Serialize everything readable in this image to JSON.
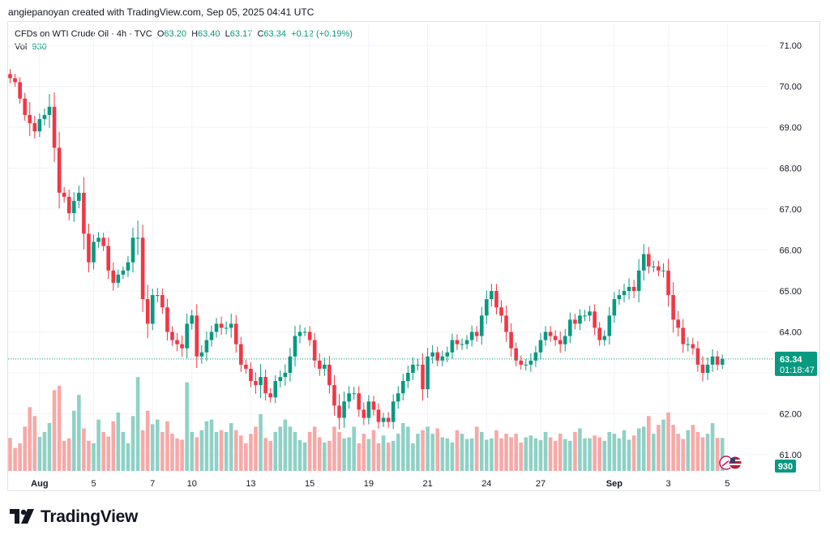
{
  "header": {
    "attribution": "angiepanoyan created with TradingView.com, Sep 05, 2025 04:41 UTC"
  },
  "legend": {
    "symbol": "CFDs on WTI Crude Oil · 4h · TVC",
    "o_label": "O",
    "o_value": "63.20",
    "h_label": "H",
    "h_value": "63.40",
    "l_label": "L",
    "l_value": "63.17",
    "c_label": "C",
    "c_value": "63.34",
    "change": "+0.12 (+0.19%)",
    "vol_label": "Vol",
    "vol_value": "930"
  },
  "branding": {
    "name": "TradingView"
  },
  "colors": {
    "up": "#089981",
    "down": "#f23645",
    "up_volume": "#8fd1c6",
    "down_volume": "#f7a9a7",
    "grid": "#f0f3fa",
    "last_price_line": "#089981"
  },
  "chart_data": {
    "type": "candlestick",
    "title": "CFDs on WTI Crude Oil · 4h · TVC",
    "ylim": [
      60.5,
      71.5
    ],
    "y_ticks": [
      "71.00",
      "70.00",
      "69.00",
      "68.00",
      "67.00",
      "66.00",
      "65.00",
      "64.00",
      "63.00",
      "62.00",
      "61.00"
    ],
    "x_tick_labels": [
      {
        "label": "Aug",
        "index": 6
      },
      {
        "label": "5",
        "index": 17
      },
      {
        "label": "7",
        "index": 29
      },
      {
        "label": "10",
        "index": 37
      },
      {
        "label": "13",
        "index": 49
      },
      {
        "label": "15",
        "index": 61
      },
      {
        "label": "19",
        "index": 73
      },
      {
        "label": "21",
        "index": 85
      },
      {
        "label": "24",
        "index": 97
      },
      {
        "label": "27",
        "index": 108
      },
      {
        "label": "Sep",
        "index": 123
      },
      {
        "label": "3",
        "index": 134
      },
      {
        "label": "5",
        "index": 146
      }
    ],
    "last_price": "63.34",
    "countdown": "01:18:47",
    "last_volume": "930",
    "closes": [
      70.2,
      70.1,
      69.7,
      69.3,
      69.1,
      68.9,
      69.2,
      69.3,
      69.5,
      68.5,
      67.4,
      67.3,
      66.9,
      67.2,
      67.4,
      66.4,
      65.7,
      66.2,
      66.3,
      66.1,
      65.5,
      65.2,
      65.4,
      65.5,
      65.7,
      66.3,
      66.3,
      64.8,
      64.2,
      64.9,
      64.9,
      64.6,
      64.0,
      63.8,
      63.7,
      63.6,
      64.2,
      64.4,
      63.4,
      63.5,
      63.8,
      64.0,
      64.2,
      64.1,
      64.1,
      64.2,
      63.7,
      63.2,
      63.1,
      62.8,
      62.7,
      62.9,
      62.5,
      62.4,
      62.8,
      62.9,
      63.0,
      63.4,
      63.9,
      64.0,
      64.0,
      63.8,
      63.3,
      63.1,
      63.2,
      62.7,
      62.2,
      61.9,
      62.3,
      62.5,
      62.5,
      62.1,
      61.9,
      62.3,
      62.1,
      61.8,
      61.9,
      61.8,
      62.3,
      62.5,
      62.8,
      63.0,
      63.2,
      63.2,
      62.6,
      63.4,
      63.5,
      63.3,
      63.4,
      63.5,
      63.8,
      63.7,
      63.7,
      63.8,
      64.0,
      63.9,
      64.4,
      64.8,
      65.0,
      64.6,
      64.4,
      64.0,
      63.6,
      63.3,
      63.2,
      63.2,
      63.3,
      63.5,
      63.8,
      64.0,
      63.9,
      63.8,
      63.7,
      63.9,
      64.3,
      64.2,
      64.4,
      64.4,
      64.5,
      64.1,
      63.8,
      63.9,
      64.4,
      64.8,
      64.9,
      65.0,
      65.1,
      65.0,
      65.5,
      65.9,
      65.6,
      65.6,
      65.5,
      65.5,
      64.9,
      64.3,
      64.1,
      63.7,
      63.7,
      63.6,
      63.2,
      63.0,
      63.2,
      63.4,
      63.2,
      63.34
    ],
    "volumes": [
      930,
      650,
      780,
      1250,
      1800,
      1550,
      960,
      1100,
      1350,
      2280,
      2400,
      850,
      920,
      1700,
      2150,
      1200,
      850,
      780,
      1450,
      1100,
      970,
      1400,
      1650,
      1100,
      780,
      1550,
      2650,
      1150,
      1700,
      1320,
      1450,
      1100,
      1400,
      1050,
      920,
      880,
      2500,
      1100,
      950,
      1150,
      1400,
      1450,
      1100,
      1150,
      1100,
      1350,
      1150,
      1000,
      780,
      1050,
      1250,
      1600,
      930,
      850,
      1100,
      1250,
      1450,
      1250,
      1100,
      870,
      800,
      1100,
      1250,
      950,
      800,
      850,
      1250,
      1100,
      920,
      950,
      1250,
      780,
      1050,
      900,
      1150,
      780,
      1000,
      800,
      850,
      1050,
      1350,
      1250,
      780,
      1050,
      1150,
      1250,
      1050,
      1200,
      950,
      920,
      800,
      1150,
      1050,
      900,
      920,
      1250,
      1100,
      880,
      920,
      1150,
      920,
      1050,
      950,
      1050,
      800,
      950,
      1000,
      920,
      870,
      1100,
      950,
      850,
      1050,
      900,
      850,
      1100,
      1200,
      920,
      920,
      1000,
      950,
      850,
      1100,
      1050,
      920,
      1150,
      880,
      1000,
      1200,
      1250,
      1550,
      1050,
      1300,
      1450,
      1650,
      1300,
      1050,
      900,
      1150,
      1300,
      1100,
      950,
      1050,
      1350,
      930,
      930
    ],
    "ranges": [
      0.35,
      0.3,
      0.35,
      0.4,
      0.9,
      0.5,
      0.4,
      0.45,
      0.9,
      1.0,
      1.1,
      0.4,
      0.5,
      0.6,
      0.5,
      1.1,
      0.7,
      0.5,
      0.4,
      0.35,
      0.6,
      0.55,
      0.35,
      0.3,
      0.45,
      0.7,
      1.2,
      0.9,
      1.0,
      0.45,
      0.5,
      0.45,
      0.6,
      0.4,
      0.5,
      0.6,
      0.7,
      0.4,
      0.8,
      0.5,
      0.6,
      0.45,
      0.4,
      0.5,
      0.45,
      0.7,
      0.6,
      0.5,
      0.35,
      0.45,
      0.6,
      0.9,
      0.5,
      0.35,
      0.4,
      0.45,
      0.6,
      0.6,
      0.7,
      0.5,
      0.3,
      0.4,
      0.5,
      0.5,
      0.5,
      0.6,
      0.7,
      0.8,
      0.7,
      0.5,
      0.45,
      0.5,
      0.5,
      0.45,
      0.4,
      0.45,
      0.35,
      0.4,
      0.5,
      0.5,
      0.5,
      0.5,
      0.5,
      0.4,
      0.8,
      0.6,
      0.5,
      0.4,
      0.4,
      0.4,
      0.45,
      0.4,
      0.4,
      0.35,
      0.45,
      0.4,
      0.6,
      0.6,
      0.5,
      0.5,
      0.5,
      0.7,
      0.6,
      0.4,
      0.35,
      0.4,
      0.5,
      0.45,
      0.5,
      0.4,
      0.4,
      0.4,
      0.6,
      0.5,
      0.5,
      0.4,
      0.45,
      0.4,
      0.4,
      0.5,
      0.4,
      0.4,
      0.6,
      0.5,
      0.4,
      0.5,
      0.6,
      0.5,
      0.8,
      0.7,
      0.5,
      0.4,
      0.4,
      0.5,
      0.8,
      0.9,
      0.6,
      0.6,
      0.5,
      0.45,
      0.5,
      0.6,
      0.5,
      0.5,
      0.4,
      0.3
    ],
    "volume_scale_max": 2700
  }
}
